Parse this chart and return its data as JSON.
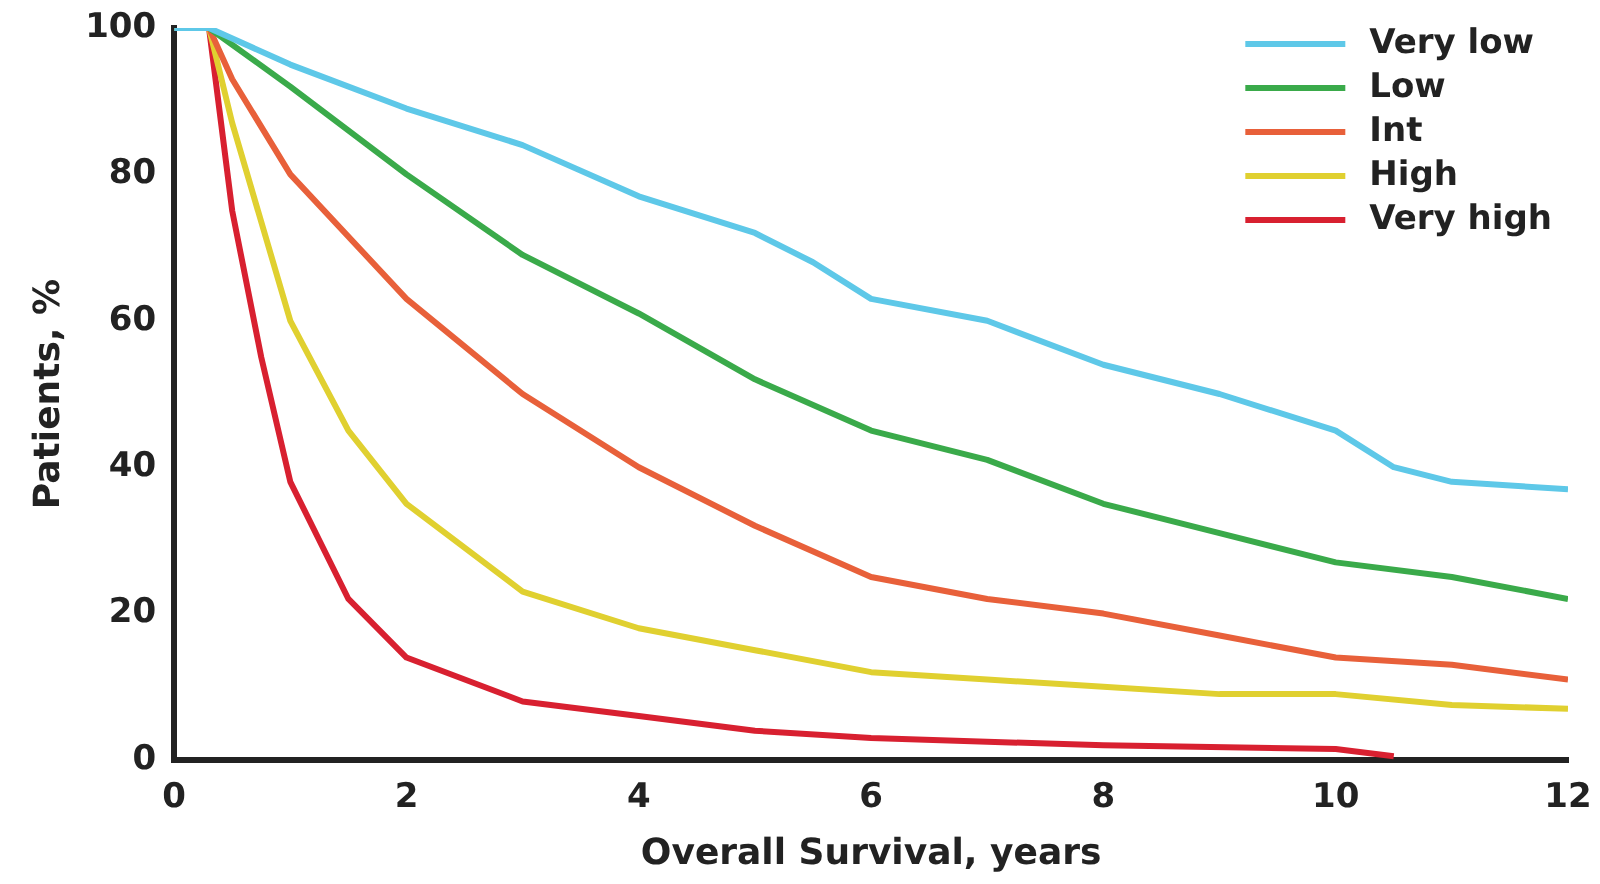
{
  "chart_data": {
    "type": "line",
    "xlabel": "Overall Survival, years",
    "ylabel": "Patients, %",
    "xlim": [
      0,
      12
    ],
    "xticks": [
      0,
      2,
      4,
      6,
      8,
      10,
      12
    ],
    "ylim": [
      0,
      100
    ],
    "yticks": [
      0,
      20,
      40,
      60,
      80,
      100
    ],
    "grid": false,
    "legend": "top right",
    "marker": "none",
    "series": [
      {
        "name": "Very low",
        "color": "#5ec8e8",
        "x": [
          0,
          0.3,
          1,
          2,
          3,
          4,
          5,
          5.5,
          6,
          7,
          8,
          9,
          10,
          10.5,
          11,
          12
        ],
        "values": [
          100,
          100,
          95,
          89,
          84,
          77,
          72,
          68,
          63,
          60,
          54,
          50,
          45,
          40,
          38,
          37
        ]
      },
      {
        "name": "Low",
        "color": "#3aaa4a",
        "x": [
          0,
          0.3,
          1,
          2,
          3,
          4,
          5,
          6,
          7,
          8,
          9,
          10,
          11,
          12
        ],
        "values": [
          100,
          100,
          92,
          80,
          69,
          61,
          52,
          45,
          41,
          35,
          31,
          27,
          25,
          22
        ]
      },
      {
        "name": "Int",
        "color": "#e8603a",
        "x": [
          0,
          0.3,
          0.5,
          1,
          2,
          3,
          4,
          5,
          6,
          7,
          8,
          9,
          10,
          11,
          12
        ],
        "values": [
          100,
          100,
          93,
          80,
          63,
          50,
          40,
          32,
          25,
          22,
          20,
          17,
          14,
          13,
          11
        ]
      },
      {
        "name": "High",
        "color": "#e0d030",
        "x": [
          0,
          0.3,
          0.5,
          1,
          1.5,
          2,
          3,
          4,
          5,
          6,
          7,
          8,
          9,
          10,
          11,
          12
        ],
        "values": [
          100,
          100,
          87,
          60,
          45,
          35,
          23,
          18,
          15,
          12,
          11,
          10,
          9,
          9,
          7.5,
          7
        ]
      },
      {
        "name": "Very high",
        "color": "#d82030",
        "x": [
          0,
          0.3,
          0.5,
          0.75,
          1,
          1.5,
          2,
          3,
          4,
          5,
          6,
          8,
          10,
          10.5
        ],
        "values": [
          100,
          100,
          75,
          55,
          38,
          22,
          14,
          8,
          6,
          4,
          3,
          2,
          1.5,
          0.5
        ]
      }
    ]
  }
}
